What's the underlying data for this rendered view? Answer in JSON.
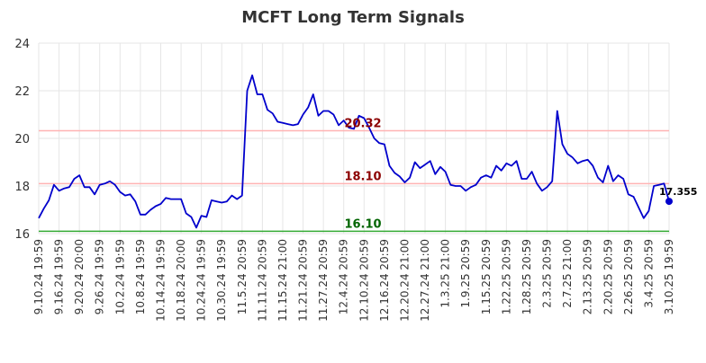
{
  "chart_data": {
    "type": "line",
    "title": "MCFT Long Term Signals",
    "ylim": [
      16,
      24
    ],
    "yticks": [
      16,
      18,
      20,
      22,
      24
    ],
    "grid": true,
    "x_ticks": [
      "9.10.24 19:59",
      "9.16.24 19:59",
      "9.20.24 20:00",
      "9.26.24 19:59",
      "10.2.24 19:59",
      "10.8.24 19:59",
      "10.14.24 19:59",
      "10.18.24 20:00",
      "10.24.24 19:59",
      "10.30.24 19:59",
      "11.5.24 20:59",
      "11.11.24 20:59",
      "11.15.24 21:00",
      "11.21.24 20:59",
      "11.27.24 20:59",
      "12.4.24 20:59",
      "12.10.24 20:59",
      "12.16.24 20:59",
      "12.20.24 21:00",
      "12.27.24 21:00",
      "1.3.25 21:00",
      "1.9.25 20:59",
      "1.15.25 20:59",
      "1.22.25 20:59",
      "1.28.25 20:59",
      "2.3.25 20:59",
      "2.7.25 21:00",
      "2.13.25 20:59",
      "2.20.25 20:59",
      "2.26.25 20:59",
      "3.4.25 20:59",
      "3.10.25 19:59"
    ],
    "series": [
      {
        "color": "#0000cc",
        "values": [
          16.65,
          17.05,
          17.4,
          18.05,
          17.8,
          17.9,
          17.95,
          18.3,
          18.45,
          17.95,
          17.95,
          17.65,
          18.05,
          18.1,
          18.2,
          18.05,
          17.75,
          17.6,
          17.65,
          17.35,
          16.8,
          16.8,
          17.0,
          17.15,
          17.25,
          17.5,
          17.45,
          17.45,
          17.45,
          16.85,
          16.7,
          16.25,
          16.75,
          16.7,
          17.4,
          17.35,
          17.3,
          17.35,
          17.6,
          17.45,
          17.6,
          22.0,
          22.65,
          21.85,
          21.85,
          21.2,
          21.05,
          20.7,
          20.65,
          20.6,
          20.55,
          20.6,
          21.0,
          21.3,
          21.85,
          20.95,
          21.15,
          21.15,
          21.0,
          20.55,
          20.75,
          20.45,
          20.4,
          20.95,
          20.85,
          20.45,
          20.0,
          19.8,
          19.75,
          18.85,
          18.55,
          18.4,
          18.15,
          18.35,
          19.0,
          18.75,
          18.9,
          19.05,
          18.5,
          18.8,
          18.6,
          18.05,
          18.0,
          18.0,
          17.8,
          17.95,
          18.05,
          18.35,
          18.45,
          18.35,
          18.85,
          18.65,
          18.95,
          18.85,
          19.05,
          18.3,
          18.3,
          18.6,
          18.1,
          17.8,
          17.95,
          18.2,
          21.15,
          19.75,
          19.35,
          19.2,
          18.95,
          19.05,
          19.1,
          18.85,
          18.35,
          18.15,
          18.85,
          18.2,
          18.45,
          18.3,
          17.65,
          17.55,
          17.1,
          16.65,
          16.95,
          18.0,
          18.05,
          18.1,
          17.355
        ]
      }
    ],
    "last_point": {
      "value": 17.355,
      "label": "17.355"
    },
    "reference_lines": [
      {
        "value": 20.32,
        "label": "20.32",
        "line_color": "#ffb3b3",
        "label_color": "#8b0000"
      },
      {
        "value": 18.1,
        "label": "18.10",
        "line_color": "#ffb3b3",
        "label_color": "#8b0000"
      },
      {
        "value": 16.1,
        "label": "16.10",
        "line_color": "#33aa33",
        "label_color": "#006400"
      }
    ]
  }
}
